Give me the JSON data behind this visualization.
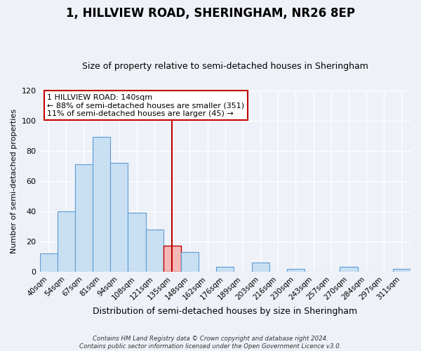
{
  "title": "1, HILLVIEW ROAD, SHERINGHAM, NR26 8EP",
  "subtitle": "Size of property relative to semi-detached houses in Sheringham",
  "xlabel": "Distribution of semi-detached houses by size in Sheringham",
  "ylabel": "Number of semi-detached properties",
  "footnote1": "Contains HM Land Registry data © Crown copyright and database right 2024.",
  "footnote2": "Contains public sector information licensed under the Open Government Licence v3.0.",
  "bin_labels": [
    "40sqm",
    "54sqm",
    "67sqm",
    "81sqm",
    "94sqm",
    "108sqm",
    "121sqm",
    "135sqm",
    "148sqm",
    "162sqm",
    "176sqm",
    "189sqm",
    "203sqm",
    "216sqm",
    "230sqm",
    "243sqm",
    "257sqm",
    "270sqm",
    "284sqm",
    "297sqm",
    "311sqm"
  ],
  "bar_values": [
    12,
    40,
    71,
    89,
    72,
    39,
    28,
    17,
    13,
    0,
    3,
    0,
    6,
    0,
    2,
    0,
    0,
    3,
    0,
    0,
    2
  ],
  "highlight_bar_index": 7,
  "bar_color": "#c9dff2",
  "bar_edge_color": "#5b9bd5",
  "highlight_bar_color": "#f4b8b8",
  "highlight_bar_edge_color": "#c00000",
  "vline_x_index": 7,
  "vline_color": "#c00000",
  "ylim": [
    0,
    120
  ],
  "yticks": [
    0,
    20,
    40,
    60,
    80,
    100,
    120
  ],
  "annotation_title": "1 HILLVIEW ROAD: 140sqm",
  "annotation_line1": "← 88% of semi-detached houses are smaller (351)",
  "annotation_line2": "11% of semi-detached houses are larger (45) →",
  "annotation_box_color": "#ffffff",
  "annotation_box_edge": "#c00000",
  "background_color": "#eef2f8",
  "grid_color": "#ffffff",
  "title_fontsize": 12,
  "subtitle_fontsize": 9,
  "ylabel_fontsize": 8,
  "xlabel_fontsize": 9,
  "tick_fontsize": 8,
  "xtick_fontsize": 7.5
}
